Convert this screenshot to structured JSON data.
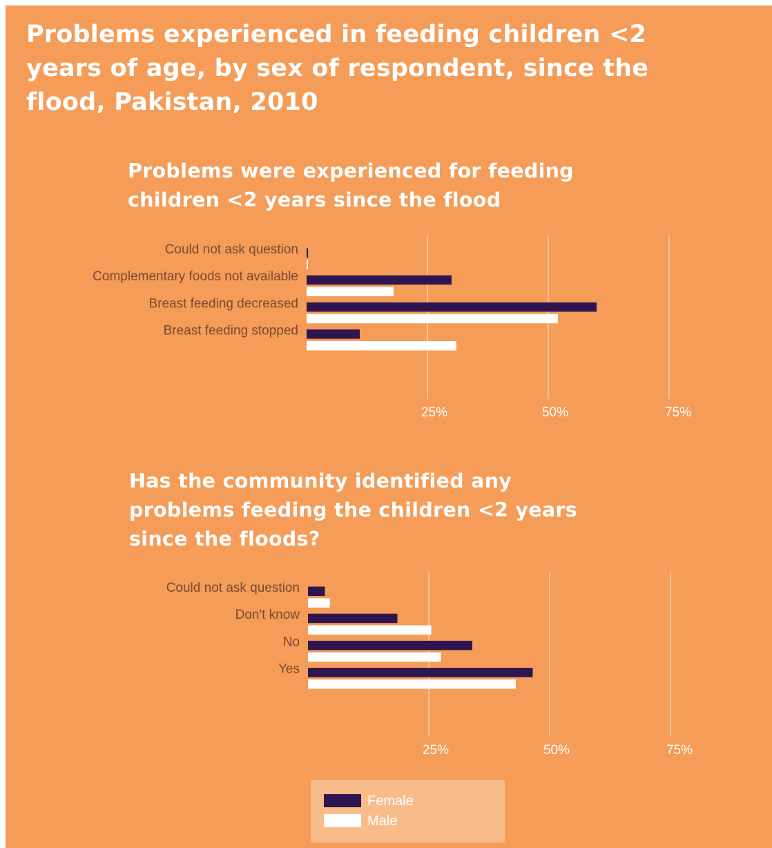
{
  "title": "Problems experienced in feeding children <2 years of age, by sex of respondent, since the flood, Pakistan, 2010",
  "colors": {
    "background": "#F49C58",
    "female": "#2E1550",
    "male": "#FFFFFF",
    "legend_background": "#F8BC8A",
    "category_text": "#7A4A30",
    "gridline": "#FBD9BE"
  },
  "legend": {
    "female": "Female",
    "male": "Male"
  },
  "chart_data": [
    {
      "type": "bar",
      "orientation": "horizontal",
      "title": "Problems were experienced for feeding children <2 years since the flood",
      "categories": [
        "Could not ask question",
        "Complementary foods not available",
        "Breast feeding decreased",
        "Breast feeding stopped"
      ],
      "series": [
        {
          "name": "Female",
          "values": [
            0.3,
            30,
            60,
            11
          ]
        },
        {
          "name": "Male",
          "values": [
            0.2,
            18,
            52,
            31
          ]
        }
      ],
      "xlim": [
        0,
        75
      ],
      "ticks": [
        25,
        50,
        75
      ],
      "tick_labels": [
        "25%",
        "50%",
        "75%"
      ],
      "grid": true,
      "legend_position": "bottom"
    },
    {
      "type": "bar",
      "orientation": "horizontal",
      "title": "Has the community identified any problems feeding the children <2 years since the floods?",
      "categories": [
        "Could not ask question",
        "Don't know",
        "No",
        "Yes"
      ],
      "series": [
        {
          "name": "Female",
          "values": [
            3.5,
            18.5,
            34,
            46.5
          ]
        },
        {
          "name": "Male",
          "values": [
            4.5,
            25.5,
            27.5,
            43
          ]
        }
      ],
      "xlim": [
        0,
        75
      ],
      "ticks": [
        25,
        50,
        75
      ],
      "tick_labels": [
        "25%",
        "50%",
        "75%"
      ],
      "grid": true,
      "legend_position": "bottom"
    }
  ]
}
